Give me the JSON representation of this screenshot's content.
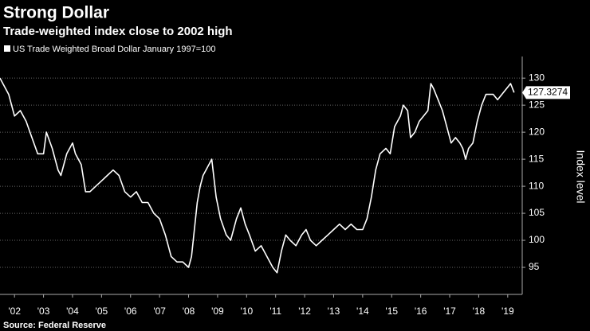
{
  "chart_data": {
    "type": "line",
    "title": "Strong Dollar",
    "subtitle": "Trade-weighted index close to 2002 high",
    "y_label": "Index level",
    "source": "Source: Federal Reserve",
    "x": [
      2002.0,
      2002.1,
      2002.3,
      2002.5,
      2002.7,
      2002.9,
      2003.1,
      2003.3,
      2003.5,
      2003.6,
      2003.8,
      2004.0,
      2004.1,
      2004.3,
      2004.5,
      2004.6,
      2004.8,
      2004.95,
      2005.1,
      2005.3,
      2005.5,
      2005.7,
      2005.9,
      2006.1,
      2006.3,
      2006.5,
      2006.7,
      2006.9,
      2007.1,
      2007.3,
      2007.5,
      2007.7,
      2007.9,
      2008.1,
      2008.3,
      2008.5,
      2008.6,
      2008.8,
      2008.9,
      2009.0,
      2009.2,
      2009.3,
      2009.45,
      2009.6,
      2009.8,
      2009.95,
      2010.15,
      2010.3,
      2010.45,
      2010.6,
      2010.8,
      2011.0,
      2011.2,
      2011.4,
      2011.55,
      2011.7,
      2011.85,
      2012.0,
      2012.2,
      2012.4,
      2012.55,
      2012.7,
      2012.9,
      2013.1,
      2013.3,
      2013.5,
      2013.7,
      2013.9,
      2014.1,
      2014.3,
      2014.5,
      2014.65,
      2014.8,
      2014.95,
      2015.1,
      2015.3,
      2015.45,
      2015.6,
      2015.8,
      2015.9,
      2016.05,
      2016.15,
      2016.3,
      2016.45,
      2016.6,
      2016.75,
      2016.85,
      2016.95,
      2017.1,
      2017.25,
      2017.4,
      2017.55,
      2017.7,
      2017.85,
      2017.95,
      2018.05,
      2018.15,
      2018.3,
      2018.45,
      2018.6,
      2018.75,
      2018.9,
      2019.0,
      2019.15,
      2019.3,
      2019.45,
      2019.6,
      2019.72
    ],
    "series": [
      {
        "name": "US Trade Weighted Broad Dollar January 1997=100",
        "color": "#ffffff",
        "values": [
          130,
          129,
          127,
          123,
          124,
          122,
          119,
          116,
          116,
          120,
          117,
          113,
          112,
          116,
          118,
          116,
          114,
          109,
          109,
          110,
          111,
          112,
          113,
          112,
          109,
          108,
          109,
          107,
          107,
          105,
          104,
          101,
          97,
          96,
          96,
          95,
          97,
          107,
          110,
          112,
          114,
          115,
          108,
          104,
          101,
          100,
          104,
          106,
          103,
          101,
          98,
          99,
          97,
          95,
          94,
          98,
          101,
          100,
          99,
          101,
          102,
          100,
          99,
          100,
          101,
          102,
          103,
          102,
          103,
          102,
          102,
          104,
          108,
          113,
          116,
          117,
          116,
          121,
          123,
          125,
          124,
          119,
          120,
          122,
          123,
          124,
          129,
          128,
          126,
          124,
          121,
          118,
          119,
          118,
          117,
          115,
          117,
          118,
          122,
          125,
          127,
          127,
          127,
          126,
          127,
          128,
          129,
          127.3274
        ]
      }
    ],
    "xlim": [
      2002,
      2020
    ],
    "xticks": [
      {
        "value": 2002.5,
        "label": "'02"
      },
      {
        "value": 2003.5,
        "label": "'03"
      },
      {
        "value": 2004.5,
        "label": "'04"
      },
      {
        "value": 2005.5,
        "label": "'05"
      },
      {
        "value": 2006.5,
        "label": "'06"
      },
      {
        "value": 2007.5,
        "label": "'07"
      },
      {
        "value": 2008.5,
        "label": "'08"
      },
      {
        "value": 2009.5,
        "label": "'09"
      },
      {
        "value": 2010.5,
        "label": "'10"
      },
      {
        "value": 2011.5,
        "label": "'11"
      },
      {
        "value": 2012.5,
        "label": "'12"
      },
      {
        "value": 2013.5,
        "label": "'13"
      },
      {
        "value": 2014.5,
        "label": "'14"
      },
      {
        "value": 2015.5,
        "label": "'15"
      },
      {
        "value": 2016.5,
        "label": "'16"
      },
      {
        "value": 2017.5,
        "label": "'17"
      },
      {
        "value": 2018.5,
        "label": "'18"
      },
      {
        "value": 2019.5,
        "label": "'19"
      }
    ],
    "ylim": [
      90,
      134
    ],
    "yticks": [
      95,
      100,
      105,
      110,
      115,
      120,
      125,
      130
    ],
    "grid": true
  }
}
